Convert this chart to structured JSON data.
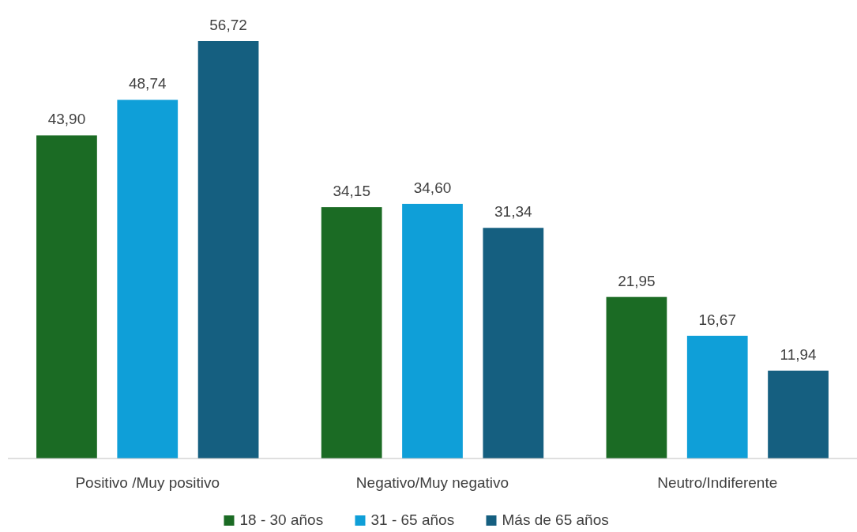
{
  "chart_data": {
    "type": "bar",
    "categories": [
      "Positivo /Muy positivo",
      "Negativo/Muy negativo",
      "Neutro/Indiferente"
    ],
    "series": [
      {
        "name": "18 - 30 años",
        "color": "#1b6b24",
        "values": [
          43.9,
          34.15,
          21.95
        ],
        "value_labels": [
          "43,90",
          "34,15",
          "21,95"
        ]
      },
      {
        "name": "31 - 65 años",
        "color": "#0f9fd8",
        "values": [
          48.74,
          34.6,
          16.67
        ],
        "value_labels": [
          "48,74",
          "34,60",
          "16,67"
        ]
      },
      {
        "name": "Más de 65 años",
        "color": "#155f80",
        "values": [
          56.72,
          31.34,
          11.94
        ],
        "value_labels": [
          "56,72",
          "31,34",
          "11,94"
        ]
      }
    ],
    "legend": "bottom",
    "grid": false
  }
}
